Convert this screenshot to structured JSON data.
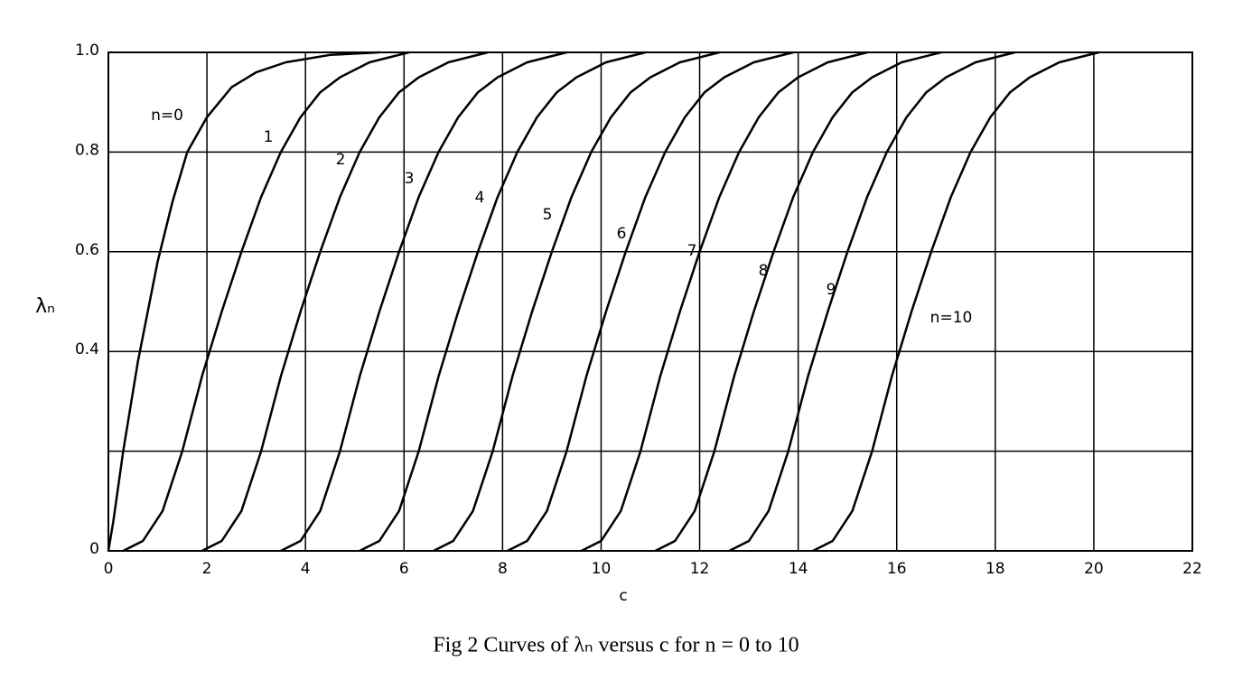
{
  "chart_data": {
    "type": "line",
    "title": "Fig 2  Curves of λₙ versus c for n = 0 to 10",
    "x_label": "c",
    "y_label": "λₙ",
    "xlim": [
      0,
      22
    ],
    "ylim": [
      0,
      1
    ],
    "xticks": [
      0,
      2,
      4,
      6,
      8,
      10,
      12,
      14,
      16,
      18,
      20,
      22
    ],
    "yticks": [
      0,
      {
        "value": 0.2,
        "label": null
      },
      0.4,
      0.6,
      0.8,
      {
        "value": 1,
        "label": "1.0"
      }
    ],
    "grid": true,
    "series": [
      {
        "name": "n=0",
        "color": "#000000",
        "x": [
          0,
          0.1,
          0.3,
          0.6,
          1.0,
          1.3,
          1.6,
          2.0,
          2.5,
          3.0,
          3.6,
          4.5,
          5.5
        ],
        "values": [
          0,
          0.06,
          0.2,
          0.38,
          0.58,
          0.7,
          0.8,
          0.87,
          0.93,
          0.96,
          0.98,
          0.995,
          1.0
        ]
      },
      {
        "name": "1",
        "color": "#000000",
        "x": [
          0.3,
          0.7,
          1.1,
          1.5,
          1.9,
          2.3,
          2.7,
          3.1,
          3.5,
          3.9,
          4.3,
          4.7,
          5.3,
          6.1
        ],
        "values": [
          0,
          0.02,
          0.08,
          0.2,
          0.35,
          0.48,
          0.6,
          0.71,
          0.8,
          0.87,
          0.92,
          0.95,
          0.98,
          1.0
        ]
      },
      {
        "name": "2",
        "color": "#000000",
        "x": [
          1.9,
          2.3,
          2.7,
          3.1,
          3.5,
          3.9,
          4.3,
          4.7,
          5.1,
          5.5,
          5.9,
          6.3,
          6.9,
          7.7
        ],
        "values": [
          0,
          0.02,
          0.08,
          0.2,
          0.35,
          0.48,
          0.6,
          0.71,
          0.8,
          0.87,
          0.92,
          0.95,
          0.98,
          1.0
        ]
      },
      {
        "name": "3",
        "color": "#000000",
        "x": [
          3.5,
          3.9,
          4.3,
          4.7,
          5.1,
          5.5,
          5.9,
          6.3,
          6.7,
          7.1,
          7.5,
          7.9,
          8.5,
          9.3
        ],
        "values": [
          0,
          0.02,
          0.08,
          0.2,
          0.35,
          0.48,
          0.6,
          0.71,
          0.8,
          0.87,
          0.92,
          0.95,
          0.98,
          1.0
        ]
      },
      {
        "name": "4",
        "color": "#000000",
        "x": [
          5.1,
          5.5,
          5.9,
          6.3,
          6.7,
          7.1,
          7.5,
          7.9,
          8.3,
          8.7,
          9.1,
          9.5,
          10.1,
          10.9
        ],
        "values": [
          0,
          0.02,
          0.08,
          0.2,
          0.35,
          0.48,
          0.6,
          0.71,
          0.8,
          0.87,
          0.92,
          0.95,
          0.98,
          1.0
        ]
      },
      {
        "name": "5",
        "color": "#000000",
        "x": [
          6.6,
          7.0,
          7.4,
          7.8,
          8.2,
          8.6,
          9.0,
          9.4,
          9.8,
          10.2,
          10.6,
          11.0,
          11.6,
          12.4
        ],
        "values": [
          0,
          0.02,
          0.08,
          0.2,
          0.35,
          0.48,
          0.6,
          0.71,
          0.8,
          0.87,
          0.92,
          0.95,
          0.98,
          1.0
        ]
      },
      {
        "name": "6",
        "color": "#000000",
        "x": [
          8.1,
          8.5,
          8.9,
          9.3,
          9.7,
          10.1,
          10.5,
          10.9,
          11.3,
          11.7,
          12.1,
          12.5,
          13.1,
          13.9
        ],
        "values": [
          0,
          0.02,
          0.08,
          0.2,
          0.35,
          0.48,
          0.6,
          0.71,
          0.8,
          0.87,
          0.92,
          0.95,
          0.98,
          1.0
        ]
      },
      {
        "name": "7",
        "color": "#000000",
        "x": [
          9.6,
          10.0,
          10.4,
          10.8,
          11.2,
          11.6,
          12.0,
          12.4,
          12.8,
          13.2,
          13.6,
          14.0,
          14.6,
          15.4
        ],
        "values": [
          0,
          0.02,
          0.08,
          0.2,
          0.35,
          0.48,
          0.6,
          0.71,
          0.8,
          0.87,
          0.92,
          0.95,
          0.98,
          1.0
        ]
      },
      {
        "name": "8",
        "color": "#000000",
        "x": [
          11.1,
          11.5,
          11.9,
          12.3,
          12.7,
          13.1,
          13.5,
          13.9,
          14.3,
          14.7,
          15.1,
          15.5,
          16.1,
          16.9
        ],
        "values": [
          0,
          0.02,
          0.08,
          0.2,
          0.35,
          0.48,
          0.6,
          0.71,
          0.8,
          0.87,
          0.92,
          0.95,
          0.98,
          1.0
        ]
      },
      {
        "name": "9",
        "color": "#000000",
        "x": [
          12.6,
          13.0,
          13.4,
          13.8,
          14.2,
          14.6,
          15.0,
          15.4,
          15.8,
          16.2,
          16.6,
          17.0,
          17.6,
          18.4
        ],
        "values": [
          0,
          0.02,
          0.08,
          0.2,
          0.35,
          0.48,
          0.6,
          0.71,
          0.8,
          0.87,
          0.92,
          0.95,
          0.98,
          1.0
        ]
      },
      {
        "name": "n=10",
        "color": "#000000",
        "x": [
          14.3,
          14.7,
          15.1,
          15.5,
          15.9,
          16.3,
          16.7,
          17.1,
          17.5,
          17.9,
          18.3,
          18.7,
          19.3,
          20.1
        ],
        "values": [
          0,
          0.02,
          0.08,
          0.2,
          0.35,
          0.48,
          0.6,
          0.71,
          0.8,
          0.87,
          0.92,
          0.95,
          0.98,
          1.0
        ]
      }
    ]
  }
}
